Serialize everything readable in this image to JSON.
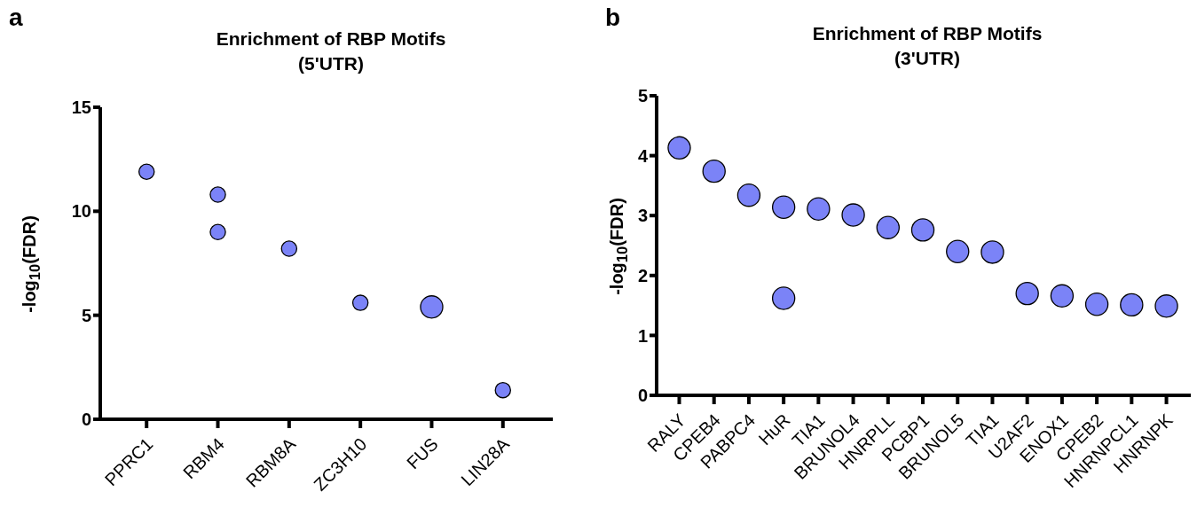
{
  "chart_data": [
    {
      "type": "bubble",
      "title": "Enrichment of RBP Motifs",
      "subtitle": "(5'UTR)",
      "ylabel": "-log$_{10}$(FDR)",
      "annotations": [
        "a"
      ],
      "categories": [
        "PPRC1",
        "RBM4",
        "RBM8A",
        "ZC3H10",
        "FUS",
        "LIN28A"
      ],
      "series": [
        {
          "color": "#7b83f7",
          "values": [
            11.9,
            10.8,
            8.2,
            5.6,
            5.4,
            1.4
          ],
          "sizes": [
            0.47,
            0.47,
            0.47,
            0.47,
            1,
            0.47
          ]
        },
        {
          "color": "#7b83f7",
          "values": [
            null,
            9.0,
            null,
            null,
            null,
            null
          ],
          "sizes": [
            null,
            0.47,
            null,
            null,
            null,
            null
          ]
        }
      ],
      "ylim": [
        0,
        15
      ],
      "yticks": [
        0,
        5,
        10,
        15
      ],
      "grid": false,
      "legend": false,
      "marker": "circle"
    },
    {
      "type": "scatter",
      "title": "Enrichment of RBP Motifs",
      "subtitle": "(3'UTR)",
      "ylabel": "-log$_{10}$(FDR)",
      "annotations": [
        "b"
      ],
      "categories": [
        "RALY",
        "CPEB4",
        "PABPC4",
        "HuR",
        "TIA1",
        "BRUNOL4",
        "HNRPLL",
        "PCBP1",
        "BRUNOL5",
        "TIA1",
        "U2AF2",
        "ENOX1",
        "CPEB2",
        "HNRNPCL1",
        "HNRNPK"
      ],
      "series": [
        {
          "color": "#7b83f7",
          "values": [
            4.13,
            3.74,
            3.34,
            3.14,
            3.11,
            3.01,
            2.8,
            2.76,
            2.4,
            2.39,
            1.7,
            1.66,
            1.52,
            1.51,
            1.49
          ]
        },
        {
          "color": "#7b83f7",
          "values": [
            null,
            null,
            null,
            1.62,
            null,
            null,
            null,
            null,
            null,
            null,
            null,
            null,
            null,
            null,
            null
          ]
        }
      ],
      "ylim": [
        0,
        5
      ],
      "yticks": [
        0,
        1,
        2,
        3,
        4,
        5
      ],
      "grid": false,
      "legend": false,
      "marker": "circle"
    }
  ]
}
